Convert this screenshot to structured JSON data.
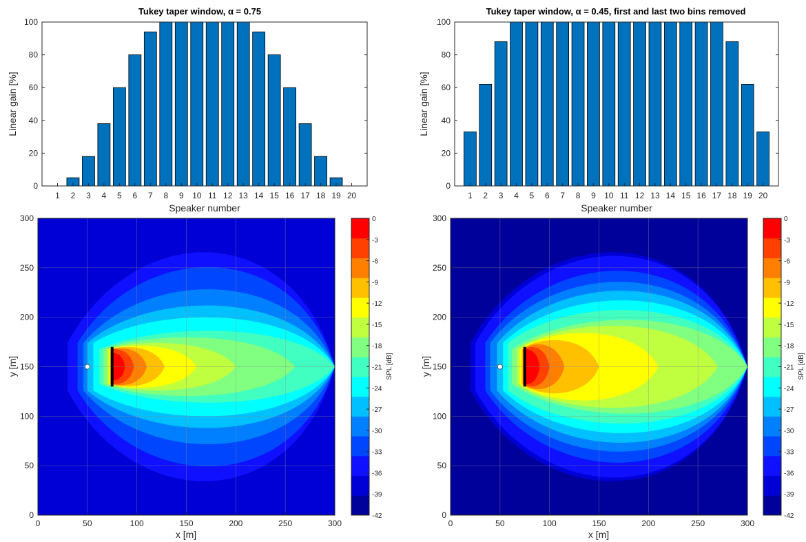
{
  "chart_data": [
    {
      "type": "bar",
      "title": "Tukey taper window, α = 0.75",
      "xlabel": "Speaker number",
      "ylabel": "Linear gain [%]",
      "categories": [
        "1",
        "2",
        "3",
        "4",
        "5",
        "6",
        "7",
        "8",
        "9",
        "10",
        "11",
        "12",
        "13",
        "14",
        "15",
        "16",
        "17",
        "18",
        "19",
        "20"
      ],
      "values": [
        0,
        5,
        18,
        38,
        60,
        80,
        94,
        100,
        100,
        100,
        100,
        100,
        100,
        94,
        80,
        60,
        38,
        18,
        5,
        0
      ],
      "ylim": [
        0,
        100
      ],
      "yticks": [
        "0",
        "20",
        "40",
        "60",
        "80",
        "100"
      ],
      "bar_color": "#0072BD"
    },
    {
      "type": "bar",
      "title": "Tukey taper window, α = 0.45, first and last two bins removed",
      "xlabel": "Speaker number",
      "ylabel": "Linear gain [%]",
      "categories": [
        "1",
        "2",
        "3",
        "4",
        "5",
        "6",
        "7",
        "8",
        "9",
        "10",
        "11",
        "12",
        "13",
        "14",
        "15",
        "16",
        "17",
        "18",
        "19",
        "20"
      ],
      "values": [
        33,
        62,
        88,
        100,
        100,
        100,
        100,
        100,
        100,
        100,
        100,
        100,
        100,
        100,
        100,
        100,
        100,
        88,
        62,
        33
      ],
      "ylim": [
        0,
        100
      ],
      "yticks": [
        "0",
        "20",
        "40",
        "60",
        "80",
        "100"
      ],
      "bar_color": "#0072BD"
    },
    {
      "type": "heatmap",
      "xlabel": "x [m]",
      "ylabel": "y [m]",
      "xlim": [
        0,
        300
      ],
      "ylim": [
        0,
        300
      ],
      "xticks": [
        "0",
        "50",
        "100",
        "150",
        "200",
        "250",
        "300"
      ],
      "yticks": [
        "0",
        "50",
        "100",
        "150",
        "200",
        "250",
        "300"
      ],
      "grid": true,
      "listener": {
        "x": 50,
        "y": 150
      },
      "array": {
        "x": 75,
        "y0": 130,
        "y1": 170
      },
      "colorbar": {
        "label": "SPL [dB]",
        "range": [
          -42,
          0
        ],
        "ticks": [
          "0",
          "-3",
          "-6",
          "-9",
          "-12",
          "-15",
          "-18",
          "-21",
          "-24",
          "-27",
          "-30",
          "-33",
          "-36",
          "-39",
          "-42"
        ]
      },
      "contour_levels": [
        {
          "x_min": 0,
          "x_max": 300,
          "half_width": 150
        },
        {
          "x_min": 0,
          "x_max": 300,
          "half_width": 150
        },
        {
          "x_min": 30,
          "x_max": 300,
          "half_width": 150
        },
        {
          "x_min": 40,
          "x_max": 300,
          "half_width": 130
        },
        {
          "x_min": 46,
          "x_max": 300,
          "half_width": 100
        },
        {
          "x_min": 50,
          "x_max": 300,
          "half_width": 78
        },
        {
          "x_min": 56,
          "x_max": 300,
          "half_width": 62
        },
        {
          "x_min": 62,
          "x_max": 300,
          "half_width": 45
        },
        {
          "x_min": 66,
          "x_max": 260,
          "half_width": 36
        },
        {
          "x_min": 70,
          "x_max": 200,
          "half_width": 28
        },
        {
          "x_min": 72,
          "x_max": 160,
          "half_width": 24
        },
        {
          "x_min": 73,
          "x_max": 128,
          "half_width": 22
        },
        {
          "x_min": 74,
          "x_max": 110,
          "half_width": 20
        },
        {
          "x_min": 74,
          "x_max": 97,
          "half_width": 18
        },
        {
          "x_min": 74,
          "x_max": 88,
          "half_width": 14
        }
      ]
    },
    {
      "type": "heatmap",
      "xlabel": "x [m]",
      "ylabel": "y [m]",
      "xlim": [
        0,
        300
      ],
      "ylim": [
        0,
        300
      ],
      "xticks": [
        "0",
        "50",
        "100",
        "150",
        "200",
        "250",
        "300"
      ],
      "yticks": [
        "0",
        "50",
        "100",
        "150",
        "200",
        "250",
        "300"
      ],
      "grid": true,
      "listener": {
        "x": 50,
        "y": 150
      },
      "array": {
        "x": 75,
        "y0": 130,
        "y1": 170
      },
      "colorbar": {
        "label": "SPL [dB]",
        "range": [
          -42,
          0
        ],
        "ticks": [
          "0",
          "-3",
          "-6",
          "-9",
          "-12",
          "-15",
          "-18",
          "-21",
          "-24",
          "-27",
          "-30",
          "-33",
          "-36",
          "-39",
          "-42"
        ]
      },
      "contour_levels": [
        {
          "x_min": 0,
          "x_max": 300,
          "half_width": 150
        },
        {
          "x_min": 20,
          "x_max": 300,
          "half_width": 150
        },
        {
          "x_min": 25,
          "x_max": 300,
          "half_width": 145
        },
        {
          "x_min": 35,
          "x_max": 300,
          "half_width": 125
        },
        {
          "x_min": 40,
          "x_max": 300,
          "half_width": 110
        },
        {
          "x_min": 47,
          "x_max": 300,
          "half_width": 98
        },
        {
          "x_min": 53,
          "x_max": 300,
          "half_width": 85
        },
        {
          "x_min": 58,
          "x_max": 300,
          "half_width": 72
        },
        {
          "x_min": 62,
          "x_max": 300,
          "half_width": 60
        },
        {
          "x_min": 67,
          "x_max": 270,
          "half_width": 52
        },
        {
          "x_min": 70,
          "x_max": 210,
          "half_width": 42
        },
        {
          "x_min": 72,
          "x_max": 150,
          "half_width": 32
        },
        {
          "x_min": 73,
          "x_max": 115,
          "half_width": 26
        },
        {
          "x_min": 74,
          "x_max": 100,
          "half_width": 22
        },
        {
          "x_min": 74,
          "x_max": 90,
          "half_width": 18
        }
      ]
    }
  ],
  "colormap": [
    "#00009B",
    "#0000D6",
    "#0F10FF",
    "#0046FF",
    "#0080FF",
    "#00C0FF",
    "#00FFFF",
    "#40FFC0",
    "#80FF80",
    "#C0FF40",
    "#FFFF00",
    "#FFC000",
    "#FF8000",
    "#FF4000",
    "#FF0000"
  ]
}
